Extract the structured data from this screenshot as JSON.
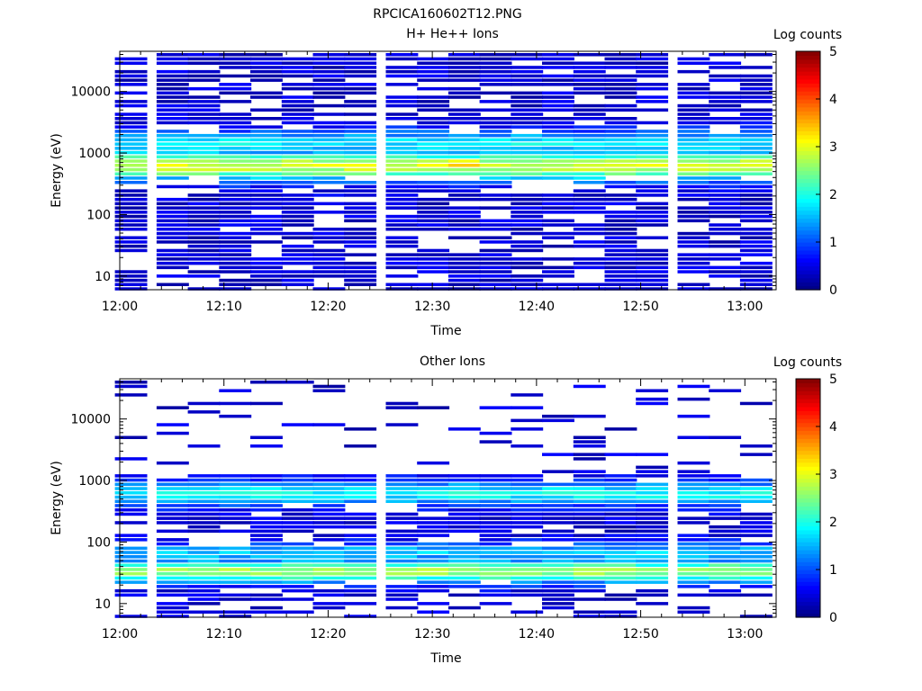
{
  "figure_title": "RPCICA160602T12.PNG",
  "chart_data": [
    {
      "type": "heatmap",
      "title": "H+ He++ Ions",
      "xlabel": "Time",
      "ylabel": "Energy (eV)",
      "y_scale": "log",
      "ylim": [
        6,
        45000
      ],
      "xlim": [
        "12:00",
        "13:03"
      ],
      "x_ticks": [
        "12:00",
        "12:10",
        "12:20",
        "12:30",
        "12:40",
        "12:50",
        "13:00"
      ],
      "y_ticks": [
        "10",
        "100",
        "1000",
        "10000"
      ],
      "colorbar": {
        "label": "Log counts",
        "range": [
          0,
          5
        ],
        "ticks": [
          "0",
          "1",
          "2",
          "3",
          "4",
          "5"
        ]
      },
      "time_bins": [
        "12:01",
        "12:05",
        "12:08",
        "12:11",
        "12:14",
        "12:17",
        "12:20",
        "12:23",
        "12:27",
        "12:30",
        "12:33",
        "12:36",
        "12:39",
        "12:42",
        "12:45",
        "12:48",
        "12:51",
        "12:55",
        "12:58",
        "13:01"
      ],
      "profile": {
        "background_log_counts": 0.4,
        "peaks": [
          {
            "energy_ev": 650,
            "log_counts": 2.9,
            "width_decades": 0.17
          },
          {
            "energy_ev": 1500,
            "log_counts": 1.8,
            "width_decades": 0.15
          }
        ]
      },
      "highlights": [
        {
          "time": "12:33",
          "energy_ev": 720,
          "log_counts": 3.3
        }
      ]
    },
    {
      "type": "heatmap",
      "title": "Other Ions",
      "xlabel": "Time",
      "ylabel": "Energy (eV)",
      "y_scale": "log",
      "ylim": [
        6,
        45000
      ],
      "xlim": [
        "12:00",
        "13:03"
      ],
      "x_ticks": [
        "12:00",
        "12:10",
        "12:20",
        "12:30",
        "12:40",
        "12:50",
        "13:00"
      ],
      "y_ticks": [
        "10",
        "100",
        "1000",
        "10000"
      ],
      "colorbar": {
        "label": "Log counts",
        "range": [
          0,
          5
        ],
        "ticks": [
          "0",
          "1",
          "2",
          "3",
          "4",
          "5"
        ]
      },
      "time_bins": [
        "12:01",
        "12:05",
        "12:08",
        "12:11",
        "12:14",
        "12:17",
        "12:20",
        "12:23",
        "12:27",
        "12:30",
        "12:33",
        "12:36",
        "12:39",
        "12:42",
        "12:45",
        "12:48",
        "12:51",
        "12:55",
        "12:58",
        "13:01"
      ],
      "profile": {
        "background_log_counts": 0.4,
        "peaks": [
          {
            "energy_ev": 650,
            "log_counts": 1.9,
            "width_decades": 0.14
          },
          {
            "energy_ev": 35,
            "log_counts": 2.7,
            "width_decades": 0.13
          },
          {
            "energy_ev": 70,
            "log_counts": 1.6,
            "width_decades": 0.12
          }
        ]
      },
      "highlights": []
    }
  ]
}
